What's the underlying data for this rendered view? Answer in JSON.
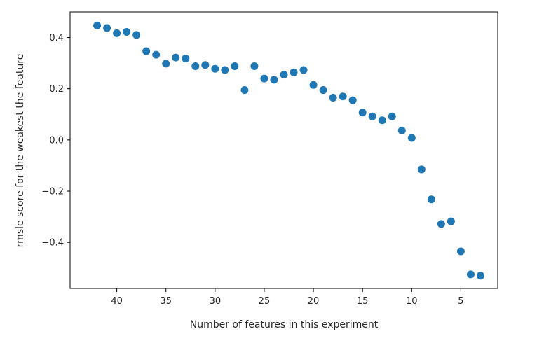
{
  "chart_data": {
    "type": "scatter",
    "title": "",
    "xlabel": "Number of features in this experiment",
    "ylabel": "rmsle score for the weakest the feature",
    "xlim": [
      44.75,
      1.25
    ],
    "ylim": [
      -0.58,
      0.5
    ],
    "x_inverted": true,
    "grid": false,
    "legend": "none",
    "marker_color": "#1f77b4",
    "x_ticks": [
      40,
      35,
      30,
      25,
      20,
      15,
      10,
      5
    ],
    "y_ticks": [
      0.4,
      0.2,
      0.0,
      -0.2,
      -0.4
    ],
    "x_tick_labels": [
      "40",
      "35",
      "30",
      "25",
      "20",
      "15",
      "10",
      "5"
    ],
    "y_tick_labels": [
      "0.4",
      "0.2",
      "0.0",
      "−0.2",
      "−0.4"
    ],
    "points": [
      {
        "x": 42,
        "y": 0.447
      },
      {
        "x": 41,
        "y": 0.437
      },
      {
        "x": 40,
        "y": 0.417
      },
      {
        "x": 39,
        "y": 0.422
      },
      {
        "x": 38,
        "y": 0.41
      },
      {
        "x": 37,
        "y": 0.347
      },
      {
        "x": 36,
        "y": 0.333
      },
      {
        "x": 35,
        "y": 0.298
      },
      {
        "x": 34,
        "y": 0.322
      },
      {
        "x": 33,
        "y": 0.318
      },
      {
        "x": 32,
        "y": 0.288
      },
      {
        "x": 31,
        "y": 0.293
      },
      {
        "x": 30,
        "y": 0.278
      },
      {
        "x": 29,
        "y": 0.273
      },
      {
        "x": 28,
        "y": 0.288
      },
      {
        "x": 27,
        "y": 0.195
      },
      {
        "x": 26,
        "y": 0.288
      },
      {
        "x": 25,
        "y": 0.24
      },
      {
        "x": 24,
        "y": 0.235
      },
      {
        "x": 23,
        "y": 0.255
      },
      {
        "x": 22,
        "y": 0.264
      },
      {
        "x": 21,
        "y": 0.273
      },
      {
        "x": 20,
        "y": 0.215
      },
      {
        "x": 19,
        "y": 0.195
      },
      {
        "x": 18,
        "y": 0.165
      },
      {
        "x": 17,
        "y": 0.17
      },
      {
        "x": 16,
        "y": 0.155
      },
      {
        "x": 15,
        "y": 0.107
      },
      {
        "x": 14,
        "y": 0.092
      },
      {
        "x": 13,
        "y": 0.077
      },
      {
        "x": 12,
        "y": 0.092
      },
      {
        "x": 11,
        "y": 0.037
      },
      {
        "x": 10,
        "y": 0.008
      },
      {
        "x": 9,
        "y": -0.115
      },
      {
        "x": 8,
        "y": -0.232
      },
      {
        "x": 7,
        "y": -0.328
      },
      {
        "x": 6,
        "y": -0.318
      },
      {
        "x": 5,
        "y": -0.435
      },
      {
        "x": 4,
        "y": -0.525
      },
      {
        "x": 3,
        "y": -0.53
      }
    ]
  }
}
